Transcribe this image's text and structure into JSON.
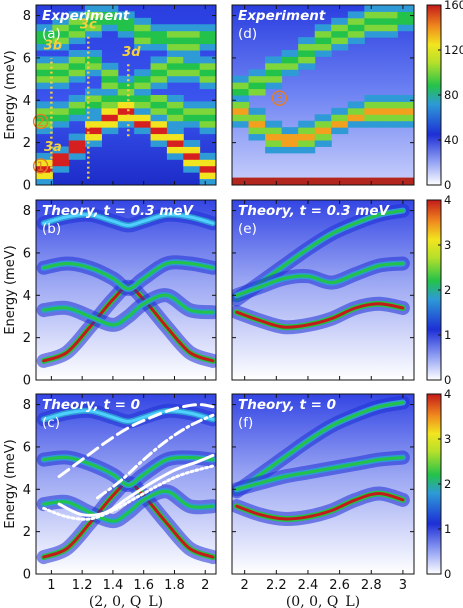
{
  "colors": {
    "deep_blue": "#1d2fd6",
    "mid_blue": "#3a5cf0",
    "green": "#23c24a",
    "yellow": "#f2e51f",
    "red": "#d62020",
    "annotation_yellow": "#f4d03f",
    "marker_orange": "#e67e22"
  },
  "chart_data": [
    {
      "type": "heatmap",
      "panel": "a",
      "title": "Experiment",
      "letter": "(a)",
      "ylabel": "Energy (meV)",
      "xlim": [
        0.9,
        2.07
      ],
      "ylim": [
        0,
        8.5
      ],
      "xticks": [
        1,
        1.2,
        1.4,
        1.6,
        1.8,
        2
      ],
      "xtick_labels": [
        "1",
        "1.2",
        "1.4",
        "1.6",
        "1.8",
        "2"
      ],
      "yticks": [
        0,
        2,
        4,
        6,
        8
      ],
      "ytick_labels": [
        "0",
        "2",
        "4",
        "6",
        "8"
      ],
      "annotations": [
        {
          "label": "3a",
          "x": 1.01,
          "y": 1.6
        },
        {
          "label": "3b",
          "x": 1.01,
          "y": 6.4
        },
        {
          "label": "3c",
          "x": 1.24,
          "y": 7.4
        },
        {
          "label": "3d",
          "x": 1.52,
          "y": 6.1
        }
      ],
      "markers": [
        {
          "label": "1",
          "x": 0.93,
          "y": 0.9
        },
        {
          "label": "2",
          "x": 0.93,
          "y": 3.0
        }
      ],
      "dashed_cuts": [
        {
          "x": 1.0,
          "y0": 0.3,
          "y1": 6.0
        },
        {
          "x": 1.24,
          "y0": 0.3,
          "y1": 7.0
        },
        {
          "x": 1.5,
          "y0": 2.3,
          "y1": 5.8
        }
      ],
      "modes": [
        {
          "x": [
            1.0,
            1.1,
            1.2,
            1.3,
            1.4,
            1.5,
            1.6,
            1.7,
            1.8,
            1.9,
            2.0
          ],
          "y": [
            0.8,
            1.2,
            1.8,
            2.5,
            3.1,
            3.5,
            3.0,
            2.6,
            1.9,
            1.3,
            0.8
          ]
        },
        {
          "x": [
            1.0,
            1.1,
            1.2,
            1.3,
            1.4,
            1.5,
            1.6,
            1.7,
            1.8,
            1.9,
            2.0
          ],
          "y": [
            3.2,
            3.3,
            3.6,
            3.9,
            4.0,
            4.1,
            4.0,
            3.7,
            3.4,
            3.3,
            3.2
          ]
        },
        {
          "x": [
            1.0,
            1.1,
            1.2,
            1.3,
            1.4,
            1.5,
            1.6,
            1.7,
            1.8,
            1.9,
            2.0
          ],
          "y": [
            5.3,
            5.4,
            5.6,
            5.8,
            5.0,
            4.6,
            4.9,
            5.4,
            5.7,
            5.5,
            5.3
          ]
        },
        {
          "x": [
            1.0,
            1.1,
            1.2,
            1.3,
            1.4,
            1.5,
            1.6,
            1.7,
            1.8,
            1.9,
            2.0
          ],
          "y": [
            7.0,
            7.2,
            7.5,
            7.8,
            7.9,
            7.6,
            7.2,
            7.0,
            6.8,
            6.9,
            7.0
          ]
        }
      ]
    },
    {
      "type": "heatmap",
      "panel": "d",
      "title": "Experiment",
      "letter": "(d)",
      "xlim": [
        1.92,
        3.07
      ],
      "ylim": [
        0,
        8.5
      ],
      "xticks": [
        2,
        2.2,
        2.4,
        2.6,
        2.8,
        3
      ],
      "xtick_labels": [
        "2",
        "2.2",
        "2.4",
        "2.6",
        "2.8",
        "3"
      ],
      "markers": [
        {
          "label": "3",
          "x": 2.22,
          "y": 4.1
        }
      ],
      "modes": [
        {
          "x": [
            2.0,
            2.1,
            2.2,
            2.3,
            2.4,
            2.5,
            2.6,
            2.7,
            2.8,
            2.9,
            3.0
          ],
          "y": [
            3.4,
            2.8,
            2.3,
            2.1,
            2.3,
            2.6,
            3.0,
            3.3,
            3.4,
            3.5,
            3.5
          ]
        },
        {
          "x": [
            2.0,
            2.1,
            2.2,
            2.3,
            2.4,
            2.5,
            2.6,
            2.7,
            2.8,
            2.9,
            3.0
          ],
          "y": [
            4.5,
            4.8,
            5.3,
            5.8,
            6.3,
            6.8,
            7.2,
            7.5,
            7.7,
            7.8,
            7.9
          ]
        }
      ],
      "colorbar": {
        "min": 0,
        "max": 160,
        "ticks": [
          0,
          40,
          80,
          120,
          160
        ],
        "tick_labels": [
          "0",
          "40",
          "80",
          "120",
          "160"
        ]
      }
    },
    {
      "type": "heatmap",
      "panel": "b",
      "title": "Theory, t = 0.3 meV",
      "letter": "(b)",
      "ylabel": "Energy (meV)",
      "xlim": [
        0.9,
        2.07
      ],
      "ylim": [
        0,
        8.5
      ],
      "xticks": [
        1,
        1.2,
        1.4,
        1.6,
        1.8,
        2
      ],
      "xtick_labels": [
        "1",
        "1.2",
        "1.4",
        "1.6",
        "1.8",
        "2"
      ],
      "yticks": [
        0,
        2,
        4,
        6,
        8
      ],
      "ytick_labels": [
        "0",
        "2",
        "4",
        "6",
        "8"
      ],
      "modes": [
        {
          "x": [
            0.95,
            1.1,
            1.25,
            1.4,
            1.5,
            1.6,
            1.75,
            1.9,
            2.05
          ],
          "y": [
            0.9,
            1.3,
            2.5,
            3.8,
            4.4,
            3.8,
            2.5,
            1.3,
            0.9
          ]
        },
        {
          "x": [
            0.95,
            1.1,
            1.25,
            1.4,
            1.5,
            1.6,
            1.75,
            1.9,
            2.05
          ],
          "y": [
            3.3,
            3.4,
            3.0,
            2.6,
            3.0,
            3.6,
            4.0,
            3.3,
            3.2
          ]
        },
        {
          "x": [
            0.95,
            1.1,
            1.25,
            1.4,
            1.5,
            1.6,
            1.75,
            1.9,
            2.05
          ],
          "y": [
            5.3,
            5.5,
            5.3,
            4.8,
            4.3,
            4.8,
            5.5,
            5.5,
            5.3
          ]
        },
        {
          "x": [
            0.95,
            1.1,
            1.25,
            1.4,
            1.5,
            1.6,
            1.75,
            1.9,
            2.05
          ],
          "y": [
            7.4,
            7.7,
            7.8,
            7.5,
            7.3,
            7.5,
            7.8,
            7.7,
            7.4
          ]
        }
      ]
    },
    {
      "type": "heatmap",
      "panel": "e",
      "title": "Theory, t = 0.3 meV",
      "letter": "(e)",
      "xlim": [
        1.92,
        3.07
      ],
      "ylim": [
        0,
        8.5
      ],
      "xticks": [
        2,
        2.2,
        2.4,
        2.6,
        2.8,
        3
      ],
      "xtick_labels": [
        "2",
        "2.2",
        "2.4",
        "2.6",
        "2.8",
        "3"
      ],
      "modes": [
        {
          "x": [
            1.95,
            2.1,
            2.25,
            2.4,
            2.55,
            2.7,
            2.85,
            3.0
          ],
          "y": [
            3.2,
            2.8,
            2.5,
            2.6,
            2.9,
            3.4,
            3.6,
            3.4
          ]
        },
        {
          "x": [
            1.95,
            2.1,
            2.25,
            2.4,
            2.55,
            2.7,
            2.85,
            3.0
          ],
          "y": [
            3.8,
            4.6,
            5.4,
            6.2,
            6.9,
            7.4,
            7.8,
            8.0
          ]
        },
        {
          "x": [
            1.95,
            2.1,
            2.25,
            2.4,
            2.55,
            2.7,
            2.85,
            3.0
          ],
          "y": [
            4.0,
            4.4,
            4.8,
            4.9,
            4.6,
            5.0,
            5.4,
            5.5
          ]
        }
      ],
      "colorbar": {
        "min": 0,
        "max": 4,
        "ticks": [
          0,
          1,
          2,
          3,
          4
        ],
        "tick_labels": [
          "0",
          "1",
          "2",
          "3",
          "4"
        ]
      }
    },
    {
      "type": "heatmap",
      "panel": "c",
      "title": "Theory, t = 0",
      "letter": "(c)",
      "xlabel": "(2, 0, Q_L)",
      "ylabel": "Energy (meV)",
      "xlim": [
        0.9,
        2.07
      ],
      "ylim": [
        0,
        8.5
      ],
      "xticks": [
        1,
        1.2,
        1.4,
        1.6,
        1.8,
        2
      ],
      "xtick_labels": [
        "1",
        "1.2",
        "1.4",
        "1.6",
        "1.8",
        "2"
      ],
      "yticks": [
        0,
        2,
        4,
        6,
        8
      ],
      "ytick_labels": [
        "0",
        "2",
        "4",
        "6",
        "8"
      ],
      "modes": [
        {
          "x": [
            0.95,
            1.1,
            1.25,
            1.4,
            1.5,
            1.6,
            1.75,
            1.9,
            2.05
          ],
          "y": [
            0.8,
            1.2,
            2.4,
            3.7,
            4.3,
            3.7,
            2.4,
            1.2,
            0.8
          ]
        },
        {
          "x": [
            0.95,
            1.1,
            1.25,
            1.4,
            1.5,
            1.6,
            1.75,
            1.9,
            2.05
          ],
          "y": [
            3.3,
            3.4,
            2.9,
            2.5,
            2.9,
            3.5,
            3.9,
            3.2,
            3.2
          ]
        },
        {
          "x": [
            0.95,
            1.1,
            1.25,
            1.4,
            1.5,
            1.6,
            1.75,
            1.9,
            2.05
          ],
          "y": [
            5.4,
            5.5,
            5.2,
            4.7,
            4.2,
            4.7,
            5.4,
            5.5,
            5.4
          ]
        },
        {
          "x": [
            0.95,
            1.1,
            1.25,
            1.4,
            1.5,
            1.6,
            1.75,
            1.9,
            2.05
          ],
          "y": [
            7.3,
            7.6,
            7.7,
            7.4,
            7.2,
            7.4,
            7.7,
            7.6,
            7.3
          ]
        }
      ],
      "overlays": [
        {
          "style": "dashed",
          "x": [
            1.05,
            1.2,
            1.35,
            1.5,
            1.65,
            1.8,
            1.95,
            2.05
          ],
          "y": [
            4.6,
            5.4,
            6.2,
            6.9,
            7.4,
            7.8,
            8.0,
            7.9
          ]
        },
        {
          "style": "dash-dot",
          "x": [
            1.3,
            1.45,
            1.6,
            1.75,
            1.9,
            2.05
          ],
          "y": [
            3.6,
            4.4,
            5.4,
            6.3,
            7.0,
            7.5
          ]
        },
        {
          "style": "solid",
          "x": [
            1.05,
            1.2,
            1.35,
            1.5,
            1.65,
            1.8,
            1.95,
            2.05
          ],
          "y": [
            3.3,
            2.8,
            2.9,
            3.6,
            4.3,
            4.9,
            5.3,
            5.6
          ]
        },
        {
          "style": "dotted",
          "x": [
            0.95,
            1.1,
            1.25,
            1.4,
            1.55,
            1.7,
            1.85,
            2.05
          ],
          "y": [
            3.1,
            2.7,
            2.6,
            3.0,
            3.6,
            4.2,
            4.7,
            5.1
          ]
        }
      ]
    },
    {
      "type": "heatmap",
      "panel": "f",
      "title": "Theory, t = 0",
      "letter": "(f)",
      "xlabel": "(0, 0, Q_L)",
      "xlim": [
        1.92,
        3.07
      ],
      "ylim": [
        0,
        8.5
      ],
      "xticks": [
        2,
        2.2,
        2.4,
        2.6,
        2.8,
        3
      ],
      "xtick_labels": [
        "2",
        "2.2",
        "2.4",
        "2.6",
        "2.8",
        "3"
      ],
      "modes": [
        {
          "x": [
            1.95,
            2.1,
            2.25,
            2.4,
            2.55,
            2.7,
            2.85,
            3.0
          ],
          "y": [
            3.2,
            2.8,
            2.6,
            2.7,
            3.0,
            3.5,
            3.8,
            3.5
          ]
        },
        {
          "x": [
            1.95,
            2.1,
            2.25,
            2.4,
            2.55,
            2.7,
            2.85,
            3.0
          ],
          "y": [
            3.9,
            4.7,
            5.5,
            6.3,
            7.0,
            7.5,
            7.9,
            8.1
          ]
        },
        {
          "x": [
            1.95,
            2.1,
            2.25,
            2.4,
            2.55,
            2.7,
            2.85,
            3.0
          ],
          "y": [
            4.0,
            4.3,
            4.6,
            4.8,
            5.0,
            5.2,
            5.4,
            5.5
          ]
        }
      ],
      "colorbar": {
        "min": 0,
        "max": 4,
        "ticks": [
          0,
          1,
          2,
          3,
          4
        ],
        "tick_labels": [
          "0",
          "1",
          "2",
          "3",
          "4"
        ]
      }
    }
  ]
}
